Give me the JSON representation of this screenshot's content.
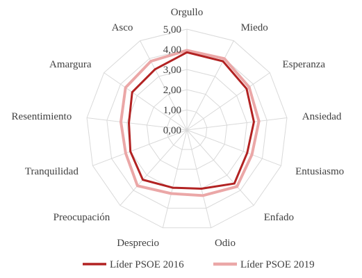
{
  "chart_data": {
    "type": "radar",
    "categories": [
      "Orgullo",
      "Miedo",
      "Esperanza",
      "Ansiedad",
      "Entusiasmo",
      "Enfado",
      "Odio",
      "Desprecio",
      "Preocupación",
      "Tranquilidad",
      "Resentimiento",
      "Amargura",
      "Asco"
    ],
    "series": [
      {
        "name": "Líder PSOE 2016",
        "color": "#b22222",
        "values": [
          3.85,
          3.85,
          3.6,
          3.35,
          3.2,
          3.55,
          3.0,
          2.95,
          3.3,
          3.0,
          2.9,
          3.3,
          3.4
        ]
      },
      {
        "name": "Líder PSOE 2019",
        "color": "#eba7a7",
        "values": [
          3.95,
          4.0,
          3.75,
          3.6,
          3.45,
          3.75,
          3.35,
          3.25,
          3.7,
          3.25,
          3.3,
          3.7,
          3.85
        ]
      }
    ],
    "rlim": [
      0,
      5
    ],
    "ticks": [
      "0,00",
      "1,00",
      "2,00",
      "3,00",
      "4,00",
      "5,00"
    ],
    "grid": true,
    "legend_position": "bottom",
    "title": ""
  }
}
